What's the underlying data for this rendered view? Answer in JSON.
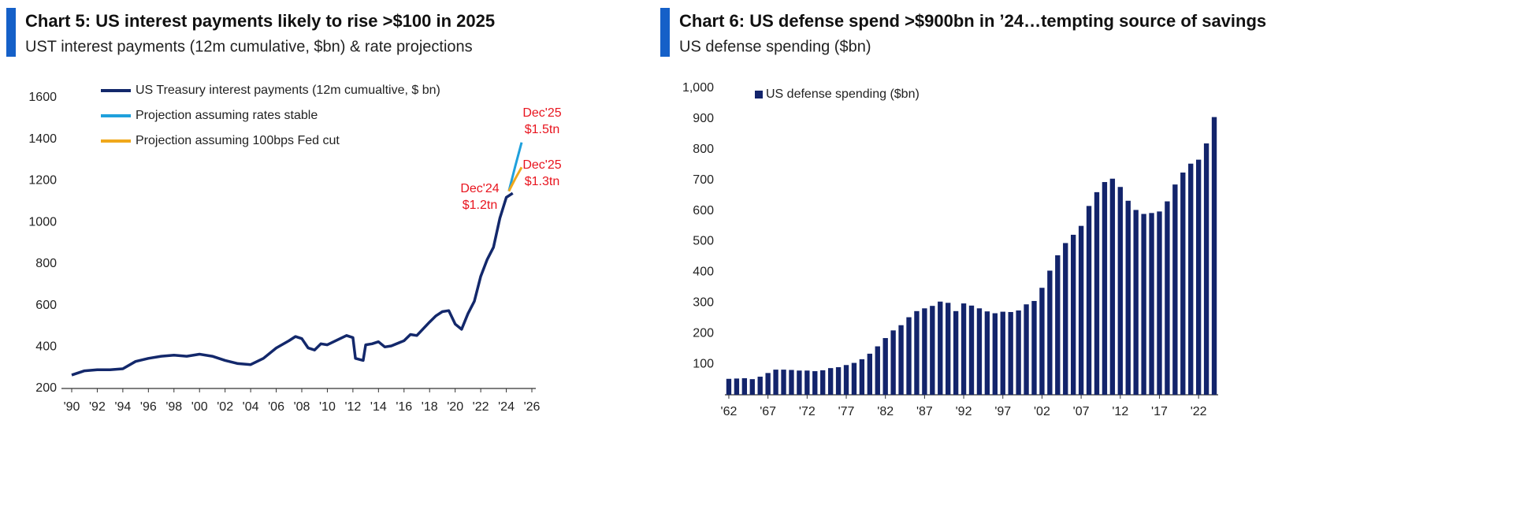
{
  "chart_data": [
    {
      "type": "line",
      "title": "Chart 5: US interest payments likely to rise >$100 in 2025",
      "subtitle": "UST interest payments (12m cumulative, $bn) & rate projections",
      "xlim": [
        1990,
        2026
      ],
      "xticks": [
        {
          "value": 1990,
          "label": "'90"
        },
        {
          "value": 1992,
          "label": "'92"
        },
        {
          "value": 1994,
          "label": "'94"
        },
        {
          "value": 1996,
          "label": "'96"
        },
        {
          "value": 1998,
          "label": "'98"
        },
        {
          "value": 2000,
          "label": "'00"
        },
        {
          "value": 2002,
          "label": "'02"
        },
        {
          "value": 2004,
          "label": "'04"
        },
        {
          "value": 2006,
          "label": "'06"
        },
        {
          "value": 2008,
          "label": "'08"
        },
        {
          "value": 2010,
          "label": "'10"
        },
        {
          "value": 2012,
          "label": "'12"
        },
        {
          "value": 2014,
          "label": "'14"
        },
        {
          "value": 2016,
          "label": "'16"
        },
        {
          "value": 2018,
          "label": "'18"
        },
        {
          "value": 2020,
          "label": "'20"
        },
        {
          "value": 2022,
          "label": "'22"
        },
        {
          "value": 2024,
          "label": "'24"
        },
        {
          "value": 2026,
          "label": "'26"
        }
      ],
      "ylim": [
        200,
        1600
      ],
      "yticks": [
        200,
        400,
        600,
        800,
        1000,
        1200,
        1400,
        1600
      ],
      "grid": false,
      "series": [
        {
          "name": "US Treasury interest payments (12m cumualtive, $ bn)",
          "color": "#13286b",
          "x": [
            1990,
            1991,
            1992,
            1993,
            1994,
            1995,
            1996,
            1997,
            1998,
            1999,
            2000,
            2001,
            2002,
            2003,
            2004,
            2005,
            2006,
            2007,
            2007.5,
            2008,
            2008.5,
            2009,
            2009.5,
            2010,
            2011,
            2011.5,
            2012,
            2012.2,
            2012.8,
            2013,
            2013.5,
            2014,
            2014.5,
            2015,
            2016,
            2016.5,
            2017,
            2018,
            2018.5,
            2019,
            2019.5,
            2020,
            2020.5,
            2021,
            2021.5,
            2022,
            2022.5,
            2023,
            2023.5,
            2024,
            2024.5
          ],
          "values": [
            265,
            285,
            290,
            290,
            295,
            330,
            345,
            355,
            360,
            355,
            365,
            355,
            335,
            320,
            315,
            345,
            395,
            430,
            450,
            440,
            395,
            385,
            415,
            410,
            440,
            455,
            445,
            345,
            335,
            410,
            415,
            425,
            400,
            405,
            430,
            460,
            455,
            520,
            550,
            570,
            575,
            510,
            485,
            560,
            620,
            740,
            820,
            880,
            1020,
            1120,
            1140
          ]
        },
        {
          "name": "Projection assuming rates stable",
          "color": "#1fa0dc",
          "x": [
            2024.2,
            2024.7,
            2025.2
          ],
          "values": [
            1150,
            1270,
            1385
          ]
        },
        {
          "name": "Projection assuming 100bps Fed cut",
          "color": "#f0a81c",
          "x": [
            2024.2,
            2024.7,
            2025.2
          ],
          "values": [
            1150,
            1210,
            1265
          ]
        }
      ],
      "annotations": [
        [
          "Dec'24",
          "$1.2tn"
        ],
        [
          "Dec'25",
          "$1.5tn"
        ],
        [
          "Dec'25",
          "$1.3tn"
        ]
      ]
    },
    {
      "type": "bar",
      "title": "Chart 6: US defense spend >$900bn in ’24…tempting source of savings",
      "subtitle": "US defense spending ($bn)",
      "categories": [
        "'62",
        null,
        null,
        null,
        null,
        "'67",
        null,
        null,
        null,
        null,
        "'72",
        null,
        null,
        null,
        null,
        "'77",
        null,
        null,
        null,
        null,
        "'82",
        null,
        null,
        null,
        null,
        "'87",
        null,
        null,
        null,
        null,
        "'92",
        null,
        null,
        null,
        null,
        "'97",
        null,
        null,
        null,
        null,
        "'02",
        null,
        null,
        null,
        null,
        "'07",
        null,
        null,
        null,
        null,
        "'12",
        null,
        null,
        null,
        null,
        "'17",
        null,
        null,
        null,
        null,
        "'22",
        null,
        null
      ],
      "ylim": [
        0,
        1000
      ],
      "yticks": [
        100,
        200,
        300,
        400,
        500,
        600,
        700,
        800,
        900,
        {
          "value": 1000,
          "label": "1,000"
        }
      ],
      "grid": false,
      "series": [
        {
          "name": "US defense spending ($bn)",
          "color": "#13246b",
          "values": [
            52,
            53,
            54,
            51,
            59,
            71,
            82,
            82,
            81,
            79,
            79,
            77,
            80,
            87,
            90,
            97,
            104,
            116,
            134,
            158,
            185,
            210,
            227,
            253,
            273,
            282,
            290,
            304,
            300,
            273,
            298,
            291,
            282,
            272,
            266,
            271,
            270,
            275,
            295,
            306,
            349,
            405,
            455,
            495,
            522,
            551,
            616,
            661,
            694,
            705,
            678,
            633,
            603,
            590,
            593,
            598,
            631,
            686,
            725,
            754,
            767,
            820,
            906
          ]
        }
      ]
    }
  ]
}
